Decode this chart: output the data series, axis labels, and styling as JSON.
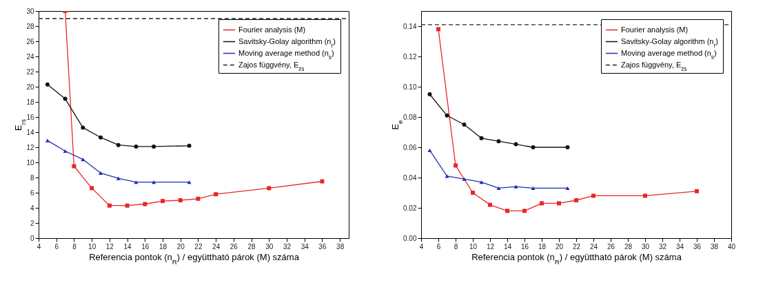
{
  "chart_data": [
    {
      "type": "line",
      "xlabel": "Referencia pontok (n$_{R}$) / együttható párok (M) száma",
      "ylabel": "E$_{rs}$",
      "xlim": [
        4,
        39
      ],
      "xticks": [
        4,
        6,
        8,
        10,
        12,
        14,
        16,
        18,
        20,
        22,
        24,
        26,
        28,
        30,
        32,
        34,
        36,
        38
      ],
      "ylim": [
        0,
        30
      ],
      "yticks": [
        0,
        2,
        4,
        6,
        8,
        10,
        12,
        14,
        16,
        18,
        20,
        22,
        24,
        26,
        28,
        30
      ],
      "grid": false,
      "legend": "top right",
      "series": [
        {
          "name": "Fourier analysis (M)",
          "color": "#e8262a",
          "marker": "square",
          "x": [
            7,
            8,
            10,
            12,
            14,
            16,
            18,
            20,
            22,
            24,
            30,
            36
          ],
          "values": [
            30,
            9.5,
            6.6,
            4.3,
            4.3,
            4.5,
            4.9,
            5.0,
            5.2,
            5.8,
            6.6,
            7.5
          ]
        },
        {
          "name": "Savitsky-Golay algorithm (n$_{r}$)",
          "color": "#111111",
          "marker": "circle",
          "x": [
            5,
            7,
            9,
            11,
            13,
            15,
            17,
            21
          ],
          "values": [
            20.3,
            18.4,
            14.6,
            13.3,
            12.3,
            12.1,
            12.1,
            12.2
          ]
        },
        {
          "name": "Moving average method (n$_{s}$)",
          "color": "#1f2fb0",
          "marker": "triangle",
          "x": [
            5,
            7,
            9,
            11,
            13,
            15,
            17,
            21
          ],
          "values": [
            12.9,
            11.5,
            10.4,
            8.6,
            7.9,
            7.4,
            7.4,
            7.4
          ]
        }
      ],
      "ref_lines": [
        {
          "axis": "y",
          "value": 29,
          "label": "Zajos függvény, E$_{zs}$",
          "color": "#222222",
          "line_style": "dashed"
        }
      ]
    },
    {
      "type": "line",
      "xlabel": "Referencia pontok (n$_{R}$) / együttható párok (M) száma",
      "ylabel": "E$_{e}$",
      "xlim": [
        4,
        40
      ],
      "xticks": [
        4,
        6,
        8,
        10,
        12,
        14,
        16,
        18,
        20,
        22,
        24,
        26,
        28,
        30,
        32,
        34,
        36,
        38,
        40
      ],
      "ylim": [
        0,
        0.15
      ],
      "yticks": [
        {
          "value": 0,
          "label": "0.00"
        },
        {
          "value": 0.02,
          "label": "0.02"
        },
        {
          "value": 0.04,
          "label": "0.04"
        },
        {
          "value": 0.06,
          "label": "0.06"
        },
        {
          "value": 0.08,
          "label": "0.08"
        },
        {
          "value": 0.1,
          "label": "0.10"
        },
        {
          "value": 0.12,
          "label": "0.12"
        },
        {
          "value": 0.14,
          "label": "0.14"
        }
      ],
      "grid": false,
      "legend": "top right",
      "series": [
        {
          "name": "Fourier analysis (M)",
          "color": "#e8262a",
          "marker": "square",
          "x": [
            6,
            8,
            10,
            12,
            14,
            16,
            18,
            20,
            22,
            24,
            30,
            36
          ],
          "values": [
            0.138,
            0.048,
            0.03,
            0.022,
            0.018,
            0.018,
            0.023,
            0.023,
            0.025,
            0.028,
            0.028,
            0.031
          ]
        },
        {
          "name": "Savitsky-Golay algorithm (n$_{r}$)",
          "color": "#111111",
          "marker": "circle",
          "x": [
            5,
            7,
            9,
            11,
            13,
            15,
            17,
            21
          ],
          "values": [
            0.095,
            0.081,
            0.075,
            0.066,
            0.064,
            0.062,
            0.06,
            0.06
          ]
        },
        {
          "name": "Moving average method (n$_{s}$)",
          "color": "#1f2fb0",
          "marker": "triangle",
          "x": [
            5,
            7,
            9,
            11,
            13,
            15,
            17,
            21
          ],
          "values": [
            0.058,
            0.041,
            0.039,
            0.037,
            0.033,
            0.034,
            0.033,
            0.033
          ]
        }
      ],
      "ref_lines": [
        {
          "axis": "y",
          "value": 0.141,
          "label": "Zajos függvény, E$_{zs}$",
          "color": "#222222",
          "line_style": "dashed"
        }
      ]
    }
  ]
}
